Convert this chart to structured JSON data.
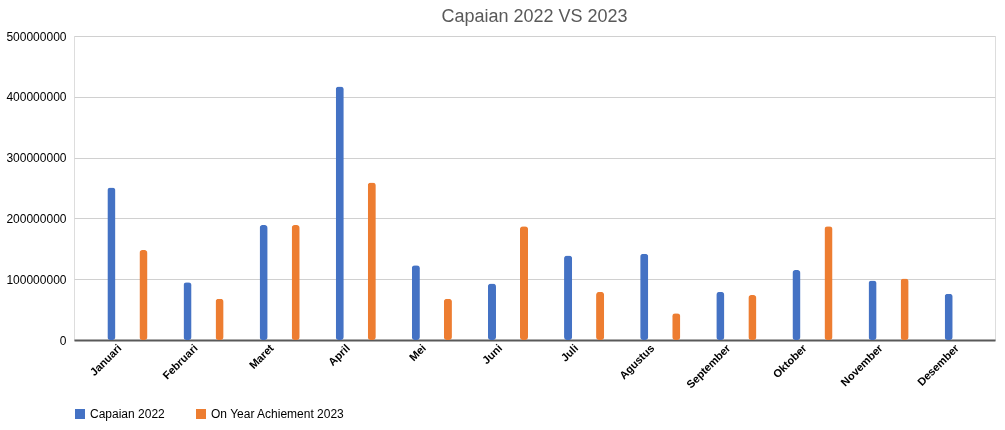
{
  "chart_data": {
    "type": "bar",
    "title": "Capaian 2022 VS 2023",
    "categories": [
      "Januari",
      "Februari",
      "Maret",
      "April",
      "Mei",
      "Juni",
      "Juli",
      "Agustus",
      "September",
      "Oktober",
      "November",
      "Desember"
    ],
    "series": [
      {
        "name": "Capaian 2022",
        "color": "#4472c4",
        "values": [
          251000000,
          95000000,
          189000000,
          417000000,
          123000000,
          93000000,
          139000000,
          142000000,
          79000000,
          115000000,
          98000000,
          76000000
        ]
      },
      {
        "name": "On Year Achiement 2023",
        "color": "#ed7d31",
        "values": [
          148000000,
          68000000,
          189000000,
          259000000,
          68000000,
          187000000,
          79000000,
          44000000,
          74000000,
          187000000,
          101000000,
          null
        ]
      }
    ],
    "ylim": [
      0,
      500000000
    ],
    "yticks": [
      0,
      100000000,
      200000000,
      300000000,
      400000000,
      500000000
    ],
    "grid": "y",
    "legend": "bottom"
  }
}
